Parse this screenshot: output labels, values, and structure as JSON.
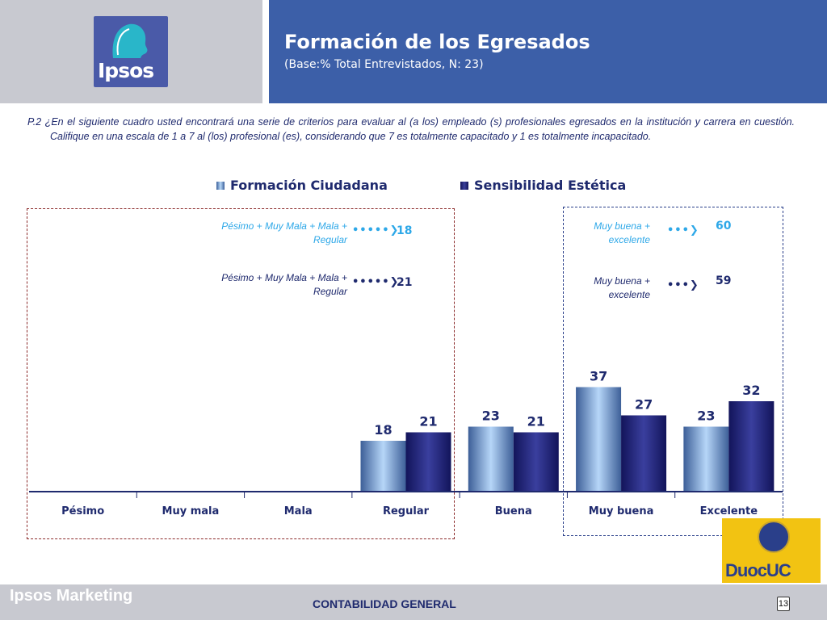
{
  "header": {
    "title": "Formación de los Egresados",
    "subtitle": "(Base:% Total Entrevistados, N: 23)",
    "logo_text": "Ipsos"
  },
  "question": "P.2 ¿En el siguiente cuadro usted encontrará una serie de criterios para evaluar al (a los) empleado (s) profesionales egresados en la institución y carrera en cuestión. Califique en una escala de 1 a 7 al (los) profesional (es), considerando que 7 es totalmente capacitado y 1 es totalmente incapacitado.",
  "annotations": {
    "left": [
      {
        "label": "Pésimo + Muy Mala + Mala + Regular",
        "value": "18"
      },
      {
        "label": "Pésimo + Muy Mala + Mala + Regular",
        "value": "21"
      }
    ],
    "right": [
      {
        "label": "Muy buena + excelente",
        "value": "60"
      },
      {
        "label": "Muy buena + excelente",
        "value": "59"
      }
    ],
    "colors": {
      "series1": "#2ea8e8",
      "series2": "#1f2a6e"
    }
  },
  "chart_data": {
    "type": "bar",
    "categories": [
      "Pésimo",
      "Muy mala",
      "Mala",
      "Regular",
      "Buena",
      "Muy buena",
      "Excelente"
    ],
    "series": [
      {
        "name": "Formación Ciudadana",
        "values": [
          null,
          null,
          null,
          18,
          23,
          37,
          23
        ],
        "color": "#8cbcf0"
      },
      {
        "name": "Sensibilidad Estética",
        "values": [
          null,
          null,
          null,
          21,
          21,
          27,
          32
        ],
        "color": "#26297a"
      }
    ],
    "ylim": [
      0,
      100
    ],
    "grid": false,
    "legend": "top"
  },
  "footer": {
    "brand": "Ipsos Marketing",
    "course": "CONTABILIDAD GENERAL",
    "page": "13",
    "partner_logo": "DuocUC"
  }
}
